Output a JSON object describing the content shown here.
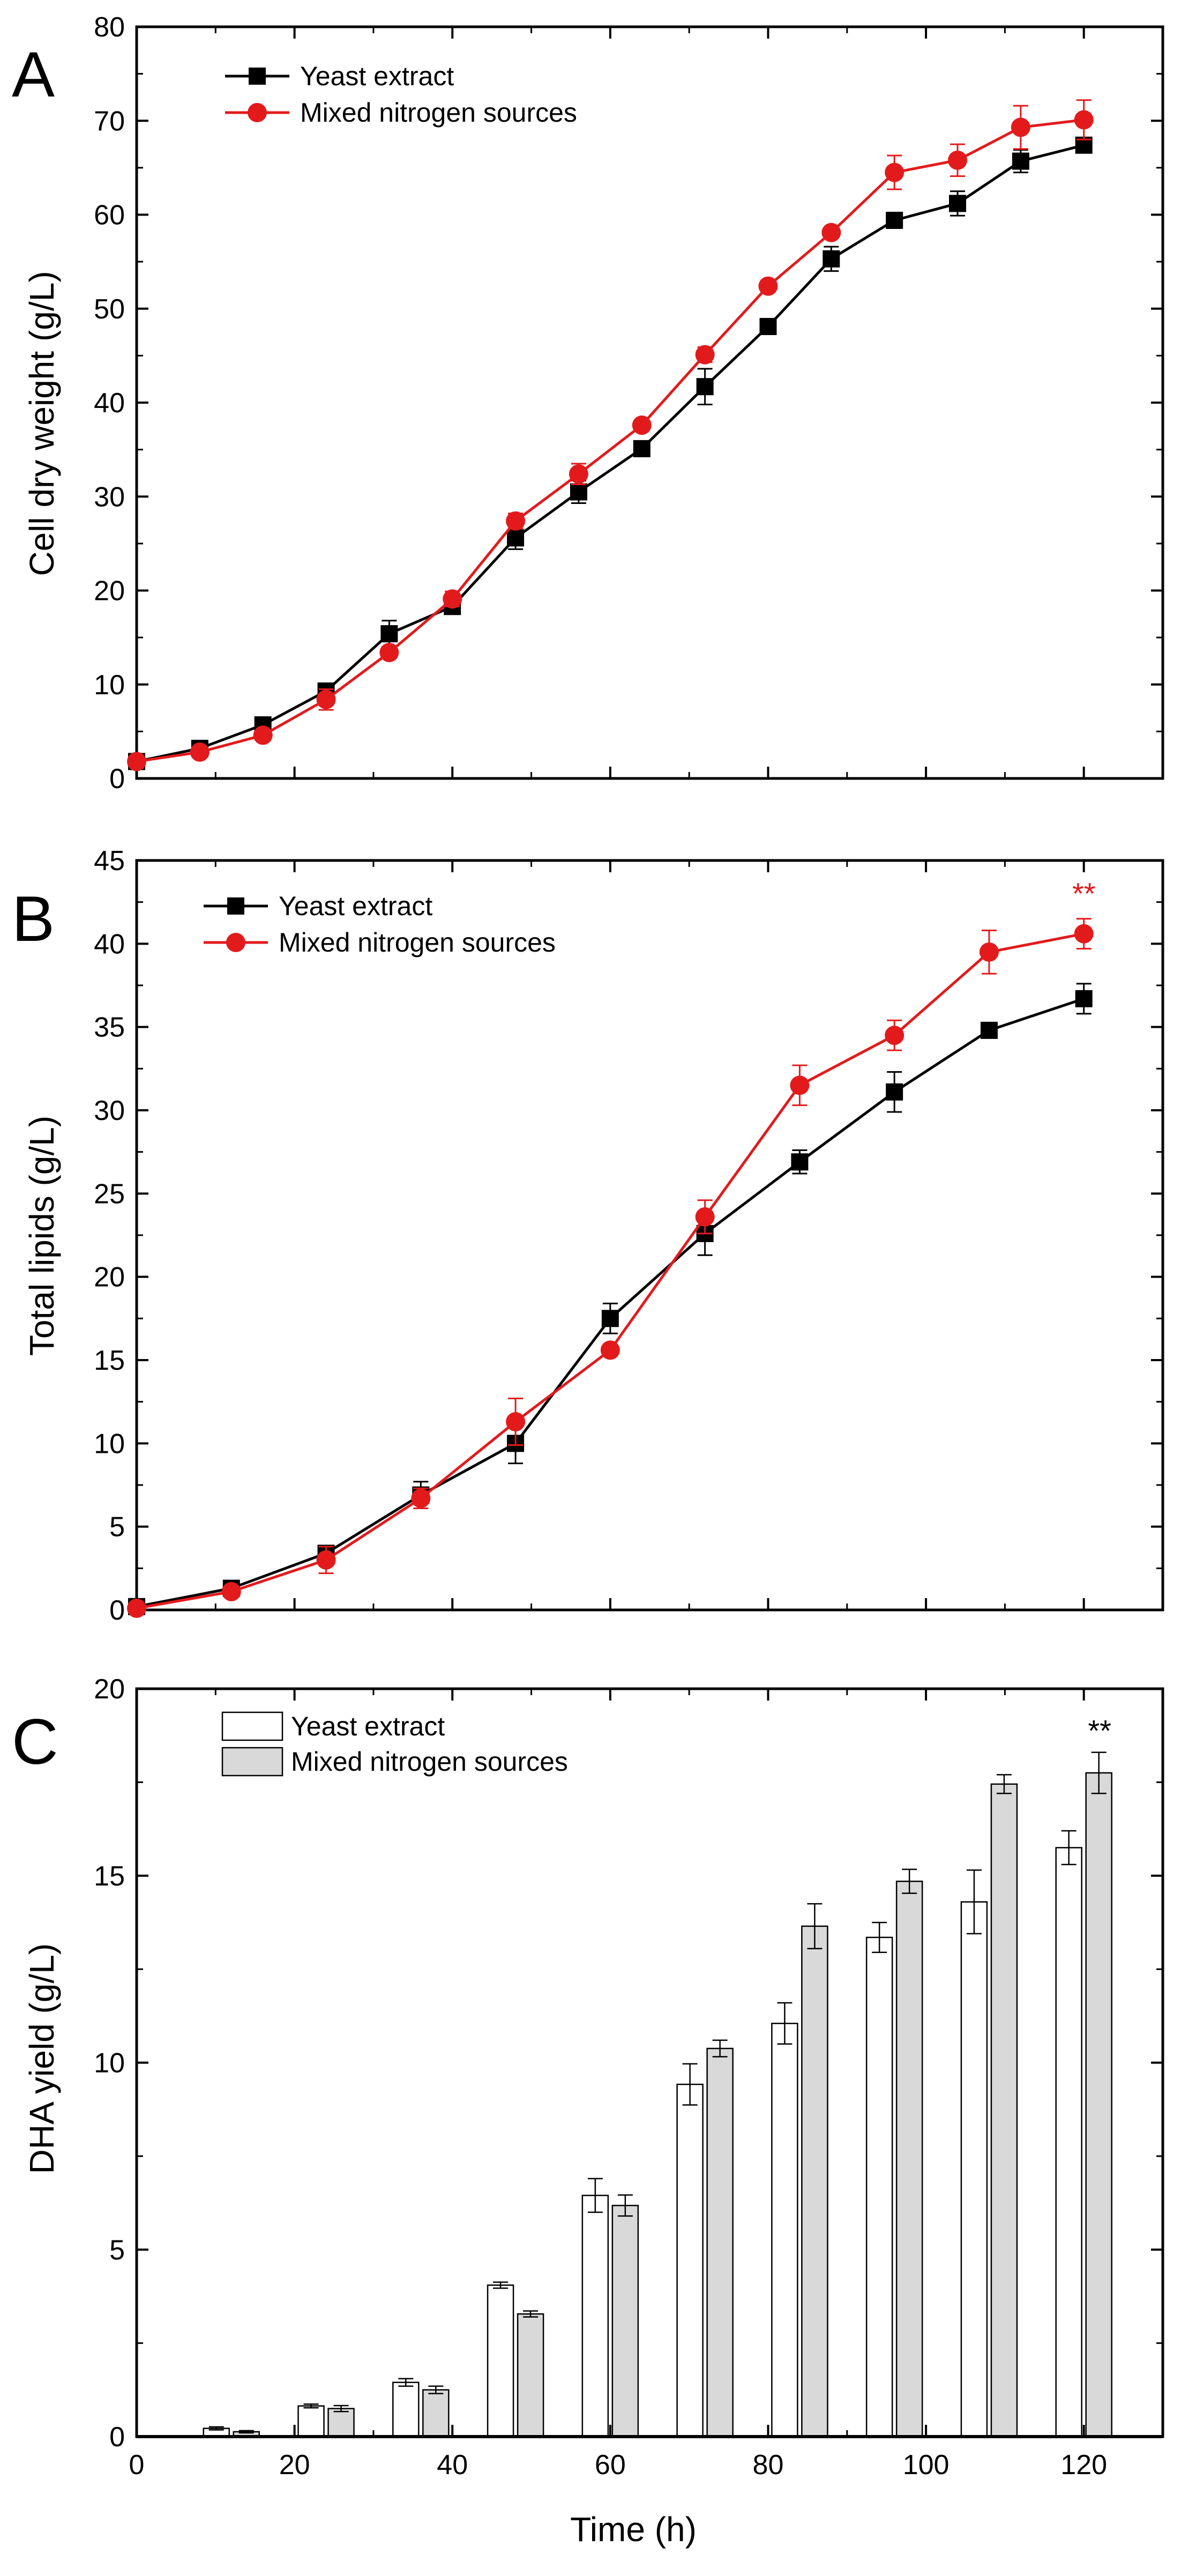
{
  "figure": {
    "xlabel": "Time (h)",
    "x_ticks": [
      "0",
      "20",
      "40",
      "60",
      "80",
      "100",
      "120"
    ]
  },
  "colors": {
    "yeast": "#000000",
    "mixed": "#e31a1c",
    "bar_yeast_fill": "#ffffff",
    "bar_mixed_fill": "#d9d9d9"
  },
  "chart_data": [
    {
      "panel": "A",
      "type": "line",
      "title": "",
      "xlabel": "",
      "ylabel": "Cell dry weight (g/L)",
      "xlim": [
        0,
        130
      ],
      "ylim": [
        0,
        80
      ],
      "y_ticks": [
        "0",
        "10",
        "20",
        "30",
        "40",
        "50",
        "60",
        "70",
        "80"
      ],
      "legend": "top-left",
      "series": [
        {
          "name": "Yeast extract",
          "color": "#000000",
          "marker": "square",
          "x": [
            0,
            8,
            16,
            24,
            32,
            40,
            48,
            56,
            64,
            72,
            80,
            88,
            96,
            104,
            112,
            120
          ],
          "y": [
            1.8,
            3.2,
            5.7,
            9.3,
            15.4,
            18.3,
            25.6,
            30.5,
            35.1,
            41.7,
            48.1,
            55.3,
            59.4,
            61.2,
            65.7,
            67.4
          ],
          "err": [
            0.5,
            0.5,
            0.6,
            0.8,
            1.4,
            0.8,
            1.2,
            1.2,
            0.6,
            1.9,
            0.5,
            1.3,
            0.6,
            1.3,
            1.2,
            0.8
          ]
        },
        {
          "name": "Mixed nitrogen sources",
          "color": "#e31a1c",
          "marker": "circle",
          "x": [
            0,
            8,
            16,
            24,
            32,
            40,
            48,
            56,
            64,
            72,
            80,
            88,
            96,
            104,
            112,
            120
          ],
          "y": [
            1.8,
            2.8,
            4.6,
            8.4,
            13.4,
            19.1,
            27.4,
            32.4,
            37.6,
            45.1,
            52.4,
            58.1,
            64.5,
            65.8,
            69.3,
            70.1
          ],
          "err": [
            0.4,
            0.4,
            0.5,
            1.1,
            0.6,
            0.8,
            0.8,
            1.1,
            0.5,
            0.8,
            0.6,
            0.5,
            1.8,
            1.7,
            2.3,
            2.1
          ]
        }
      ]
    },
    {
      "panel": "B",
      "type": "line",
      "title": "",
      "xlabel": "",
      "ylabel": "Total lipids (g/L)",
      "xlim": [
        0,
        130
      ],
      "ylim": [
        0,
        45
      ],
      "y_ticks": [
        "0",
        "5",
        "10",
        "15",
        "20",
        "25",
        "30",
        "35",
        "40",
        "45"
      ],
      "legend": "top-left",
      "annotation": {
        "text": "**",
        "x": 120,
        "y": 42.4,
        "color": "#e31a1c"
      },
      "series": [
        {
          "name": "Yeast extract",
          "color": "#000000",
          "marker": "square",
          "x": [
            0,
            12,
            24,
            36,
            48,
            60,
            72,
            84,
            96,
            108,
            120
          ],
          "y": [
            0.2,
            1.3,
            3.4,
            6.9,
            10.0,
            17.5,
            22.6,
            26.9,
            31.1,
            34.8,
            36.7
          ],
          "err": [
            0.2,
            0.3,
            0.3,
            0.8,
            1.2,
            0.9,
            1.3,
            0.7,
            1.2,
            0.3,
            0.9
          ]
        },
        {
          "name": "Mixed nitrogen sources",
          "color": "#e31a1c",
          "marker": "circle",
          "x": [
            0,
            12,
            24,
            36,
            48,
            60,
            72,
            84,
            96,
            108,
            120
          ],
          "y": [
            0.1,
            1.1,
            3.0,
            6.7,
            11.3,
            15.6,
            23.6,
            31.5,
            34.5,
            39.5,
            40.6
          ],
          "err": [
            0.2,
            0.3,
            0.8,
            0.6,
            1.4,
            0.3,
            1.0,
            1.2,
            0.9,
            1.3,
            0.9
          ]
        }
      ]
    },
    {
      "panel": "C",
      "type": "bar",
      "title": "",
      "xlabel": "Time (h)",
      "ylabel": "DHA yield (g/L)",
      "xlim": [
        0,
        130
      ],
      "ylim": [
        0,
        20
      ],
      "y_ticks": [
        "0",
        "5",
        "10",
        "15",
        "20"
      ],
      "legend": "top-left",
      "annotation": {
        "text": "**",
        "x": 122,
        "y": 18.6,
        "color": "#000000"
      },
      "series": [
        {
          "name": "Yeast extract",
          "fill": "#ffffff",
          "x": [
            12,
            24,
            36,
            48,
            60,
            72,
            84,
            96,
            108,
            120
          ],
          "values": [
            0.22,
            0.82,
            1.45,
            4.05,
            6.45,
            9.42,
            11.05,
            13.35,
            14.3,
            15.75
          ],
          "err": [
            0.04,
            0.05,
            0.1,
            0.08,
            0.45,
            0.55,
            0.55,
            0.4,
            0.85,
            0.45
          ]
        },
        {
          "name": "Mixed nitrogen sources",
          "fill": "#d9d9d9",
          "x": [
            12,
            24,
            36,
            48,
            60,
            72,
            84,
            96,
            108,
            120
          ],
          "values": [
            0.13,
            0.75,
            1.25,
            3.28,
            6.18,
            10.38,
            13.65,
            14.85,
            17.45,
            17.75
          ],
          "err": [
            0.03,
            0.08,
            0.1,
            0.08,
            0.28,
            0.22,
            0.6,
            0.32,
            0.25,
            0.55
          ]
        }
      ]
    }
  ]
}
